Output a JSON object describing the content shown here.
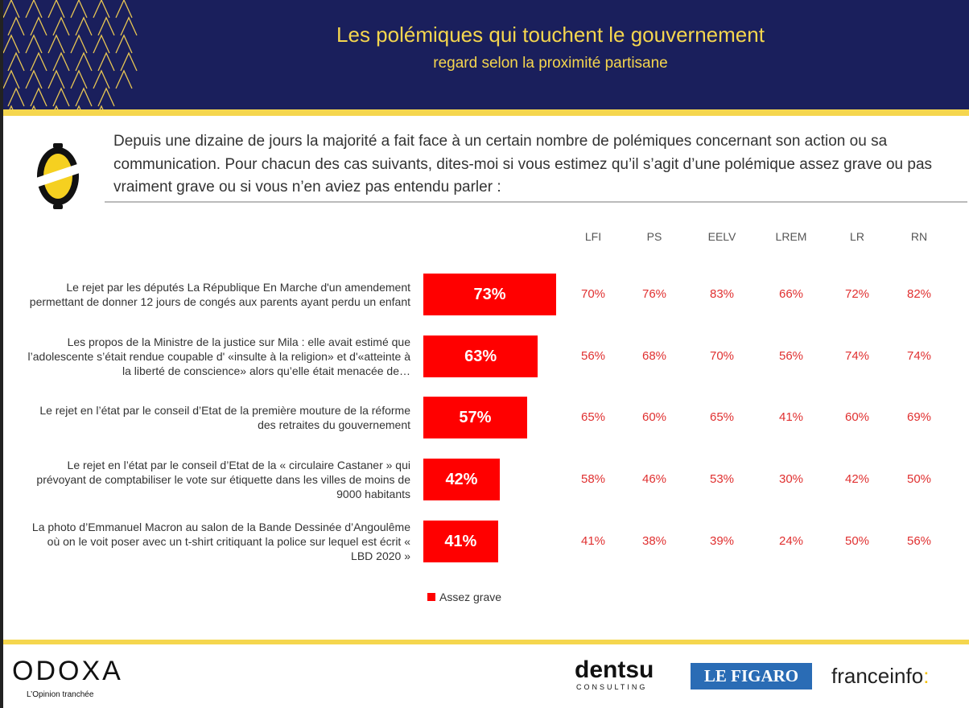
{
  "header": {
    "title": "Les polémiques qui touchent le gouvernement",
    "subtitle": "regard selon la proximité partisane"
  },
  "question": "Depuis une dizaine de jours la majorité a fait face à un certain nombre de polémiques concernant son action ou sa communication. Pour chacun des cas suivants, dites-moi si vous estimez qu’il s’agit d’une polémique assez grave ou pas vraiment grave ou si vous n’en aviez pas entendu parler :",
  "colors": {
    "navy": "#1a1f5c",
    "yellow": "#f5d64e",
    "bar": "#ff0000",
    "values": "#e03030"
  },
  "chart_data": {
    "type": "bar",
    "orientation": "horizontal",
    "categories": [
      "Le rejet par les députés La République En Marche d'un amendement permettant de donner 12 jours de congés aux parents ayant perdu un enfant",
      "Les propos de la Ministre de la justice sur Mila : elle avait estimé que l’adolescente s’était rendue coupable d' «insulte à la religion» et d'«atteinte à la liberté de conscience» alors qu’elle était menacée de…",
      "Le rejet en l’état par le conseil d’Etat de la première mouture de la réforme des retraites du gouvernement",
      "Le rejet en l’état par le conseil d’Etat de la « circulaire Castaner » qui prévoyant de comptabiliser le vote sur étiquette dans les villes de moins de 9000 habitants",
      "La photo d’Emmanuel Macron au salon de la Bande Dessinée d’Angoulême où on le voit poser avec un t-shirt critiquant la police sur lequel est écrit « LBD 2020 »"
    ],
    "series": [
      {
        "name": "Assez grave",
        "values": [
          73,
          63,
          57,
          42,
          41
        ],
        "labels": [
          "73%",
          "63%",
          "57%",
          "42%",
          "41%"
        ]
      }
    ],
    "table": {
      "columns": [
        "LFI",
        "PS",
        "EELV",
        "LREM",
        "LR",
        "RN"
      ],
      "rows": [
        [
          "70%",
          "76%",
          "83%",
          "66%",
          "72%",
          "82%"
        ],
        [
          "56%",
          "68%",
          "70%",
          "56%",
          "74%",
          "74%"
        ],
        [
          "65%",
          "60%",
          "65%",
          "41%",
          "60%",
          "69%"
        ],
        [
          "58%",
          "46%",
          "53%",
          "30%",
          "42%",
          "50%"
        ],
        [
          "41%",
          "38%",
          "39%",
          "24%",
          "50%",
          "56%"
        ]
      ]
    },
    "legend": "Assez grave",
    "legend_position": "bottom"
  },
  "footer": {
    "odoxa": "ODOXA",
    "tagline": "L’Opinion tranchée",
    "dentsu": "dentsu",
    "dentsu_sub": "CONSULTING",
    "figaro": "LE FIGARO",
    "franceinfo": "franceinfo",
    "franceinfo_colon": ":"
  }
}
